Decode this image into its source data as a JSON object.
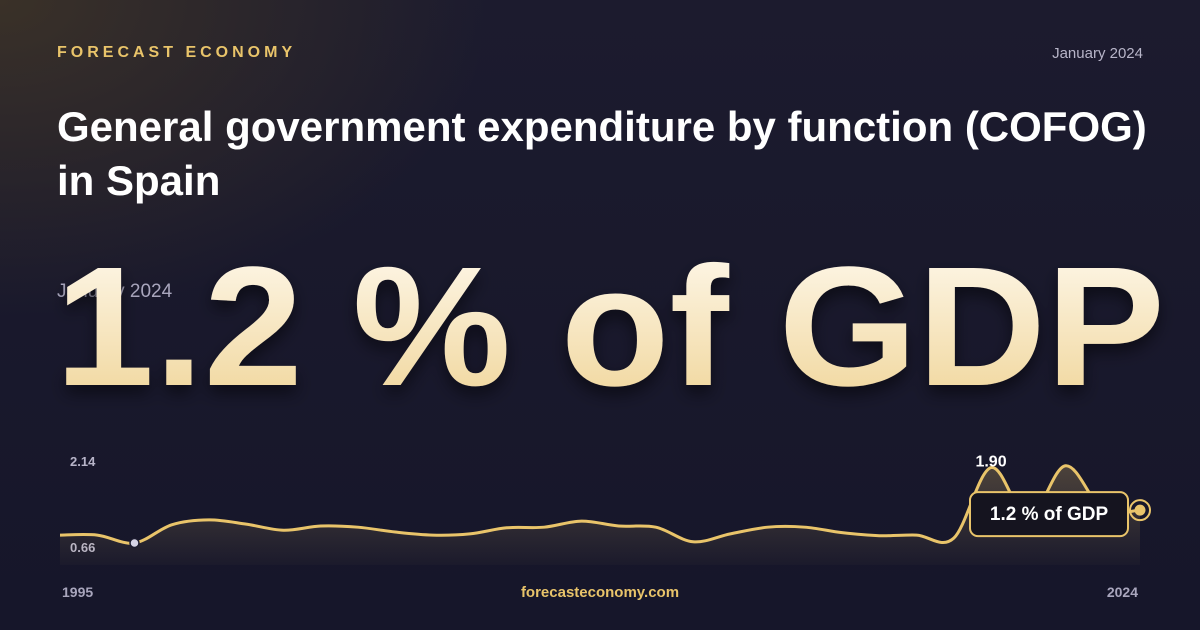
{
  "chart_data": {
    "type": "line",
    "brand": "FORECAST ECONOMY",
    "date": "January 2024",
    "title": "General government expenditure by function (COFOG) in Spain",
    "headline": "1.2 % of GDP",
    "footer": "forecasteconomy.com",
    "x": [
      1995,
      1996,
      1997,
      1998,
      1999,
      2000,
      2001,
      2002,
      2003,
      2004,
      2005,
      2006,
      2007,
      2008,
      2009,
      2010,
      2011,
      2012,
      2013,
      2014,
      2015,
      2016,
      2017,
      2018,
      2019,
      2020,
      2021,
      2022,
      2023,
      2024
    ],
    "series": [
      {
        "color": "#e9c46a",
        "values": [
          0.79,
          0.79,
          0.66,
          0.96,
          1.04,
          0.97,
          0.87,
          0.94,
          0.92,
          0.84,
          0.79,
          0.81,
          0.91,
          0.92,
          1.02,
          0.94,
          0.92,
          0.68,
          0.81,
          0.92,
          0.92,
          0.83,
          0.78,
          0.79,
          0.74,
          1.9,
          1.07,
          1.93,
          1.21,
          1.2
        ],
        "value_labels": [
          null,
          null,
          null,
          null,
          null,
          null,
          null,
          null,
          null,
          null,
          null,
          null,
          null,
          null,
          null,
          null,
          null,
          null,
          null,
          null,
          null,
          null,
          null,
          null,
          null,
          "1.90",
          null,
          null,
          null,
          "1.2 % of GDP"
        ]
      }
    ],
    "xlim": [
      1995,
      2024
    ],
    "xticks": [
      1995,
      2024
    ],
    "ylim": [
      0.66,
      2.14
    ],
    "yticks": [
      2.14,
      0.66
    ]
  }
}
